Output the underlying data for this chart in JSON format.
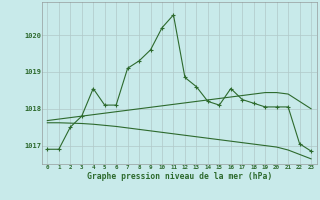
{
  "x": [
    0,
    1,
    2,
    3,
    4,
    5,
    6,
    7,
    8,
    9,
    10,
    11,
    12,
    13,
    14,
    15,
    16,
    17,
    18,
    19,
    20,
    21,
    22,
    23
  ],
  "line_main": [
    1016.9,
    1016.9,
    1017.5,
    1017.8,
    1018.55,
    1018.1,
    1018.1,
    1019.1,
    1019.3,
    1019.6,
    1020.2,
    1020.55,
    1018.85,
    1018.6,
    1018.2,
    1018.1,
    1018.55,
    1018.25,
    1018.15,
    1018.05,
    1018.05,
    1018.05,
    1017.05,
    1016.85
  ],
  "line_upper": [
    1017.68,
    1017.72,
    1017.76,
    1017.8,
    1017.84,
    1017.88,
    1017.92,
    1017.96,
    1018.0,
    1018.04,
    1018.08,
    1018.12,
    1018.16,
    1018.2,
    1018.24,
    1018.28,
    1018.32,
    1018.36,
    1018.4,
    1018.44,
    1018.44,
    1018.4,
    1018.2,
    1018.0
  ],
  "line_lower": [
    1017.62,
    1017.62,
    1017.61,
    1017.6,
    1017.58,
    1017.55,
    1017.52,
    1017.48,
    1017.44,
    1017.4,
    1017.36,
    1017.32,
    1017.28,
    1017.24,
    1017.2,
    1017.16,
    1017.12,
    1017.08,
    1017.04,
    1017.0,
    1016.96,
    1016.88,
    1016.76,
    1016.64
  ],
  "line_color": "#2d6a2d",
  "bg_color": "#c8eaea",
  "grid_color": "#b0c8c8",
  "yticks": [
    1017,
    1018,
    1019,
    1020
  ],
  "ylim": [
    1016.5,
    1020.9
  ],
  "xlim": [
    -0.5,
    23.5
  ],
  "xlabel": "Graphe pression niveau de la mer (hPa)"
}
